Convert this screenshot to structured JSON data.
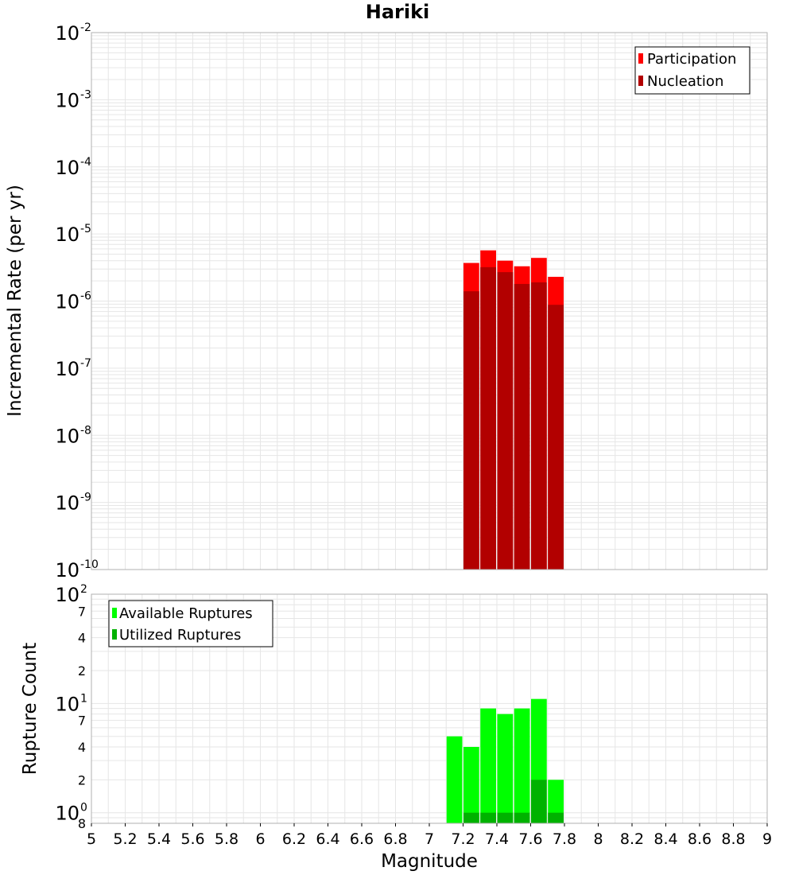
{
  "title": "Hariki",
  "colors": {
    "participation": "#ff0000",
    "nucleation": "#b20000",
    "available": "#00ff00",
    "utilized": "#00b200",
    "grid": "#e6e6e6",
    "frame": "#b0b0b0"
  },
  "chart_data": [
    {
      "type": "bar",
      "panel": "top",
      "ylabel": "Incremental Rate (per yr)",
      "yscale": "log",
      "ylim": [
        1e-10,
        0.01
      ],
      "y_ticks": [
        {
          "base": "10",
          "exp": "-10",
          "value": 1e-10
        },
        {
          "base": "10",
          "exp": "-9",
          "value": 1e-09
        },
        {
          "base": "10",
          "exp": "-8",
          "value": 1e-08
        },
        {
          "base": "10",
          "exp": "-7",
          "value": 1e-07
        },
        {
          "base": "10",
          "exp": "-6",
          "value": 1e-06
        },
        {
          "base": "10",
          "exp": "-5",
          "value": 1e-05
        },
        {
          "base": "10",
          "exp": "-4",
          "value": 0.0001
        },
        {
          "base": "10",
          "exp": "-3",
          "value": 0.001
        },
        {
          "base": "10",
          "exp": "-2",
          "value": 0.01
        }
      ],
      "legend_position": "top-right",
      "legend": [
        "Participation",
        "Nucleation"
      ],
      "x": [
        7.25,
        7.35,
        7.45,
        7.55,
        7.65,
        7.75
      ],
      "bar_width": 0.1,
      "series": [
        {
          "name": "Participation",
          "values": [
            3.7e-06,
            5.7e-06,
            4e-06,
            3.3e-06,
            4.4e-06,
            2.3e-06
          ]
        },
        {
          "name": "Nucleation",
          "values": [
            1.4e-06,
            3.2e-06,
            2.7e-06,
            1.8e-06,
            1.9e-06,
            8.8e-07
          ]
        }
      ]
    },
    {
      "type": "bar",
      "panel": "bottom",
      "ylabel": "Rupture Count",
      "xlabel": "Magnitude",
      "yscale": "log",
      "ylim": [
        0.8,
        100
      ],
      "y_ticks": [
        {
          "base": "10",
          "exp": "0",
          "value": 1
        },
        {
          "base": "10",
          "exp": "1",
          "value": 10
        },
        {
          "base": "10",
          "exp": "2",
          "value": 100
        }
      ],
      "y_minor_ticks": [
        {
          "label": "8",
          "value": 0.8
        },
        {
          "label": "2",
          "value": 2
        },
        {
          "label": "4",
          "value": 4
        },
        {
          "label": "7",
          "value": 7
        },
        {
          "label": "2",
          "value": 20
        },
        {
          "label": "4",
          "value": 40
        },
        {
          "label": "7",
          "value": 70
        }
      ],
      "legend_position": "top-left",
      "legend": [
        "Available Ruptures",
        "Utilized Ruptures"
      ],
      "x": [
        7.15,
        7.25,
        7.35,
        7.45,
        7.55,
        7.65,
        7.75
      ],
      "bar_width": 0.1,
      "series": [
        {
          "name": "Available Ruptures",
          "values": [
            5,
            4,
            9,
            8,
            9,
            11,
            2
          ]
        },
        {
          "name": "Utilized Ruptures",
          "values": [
            0,
            1,
            1,
            1,
            1,
            2,
            1
          ]
        }
      ]
    }
  ],
  "x_axis": {
    "label": "Magnitude",
    "range": [
      5,
      9
    ],
    "ticks": [
      "5",
      "5.2",
      "5.4",
      "5.6",
      "5.8",
      "6",
      "6.2",
      "6.4",
      "6.6",
      "6.8",
      "7",
      "7.2",
      "7.4",
      "7.6",
      "7.8",
      "8",
      "8.2",
      "8.4",
      "8.6",
      "8.8",
      "9"
    ]
  }
}
